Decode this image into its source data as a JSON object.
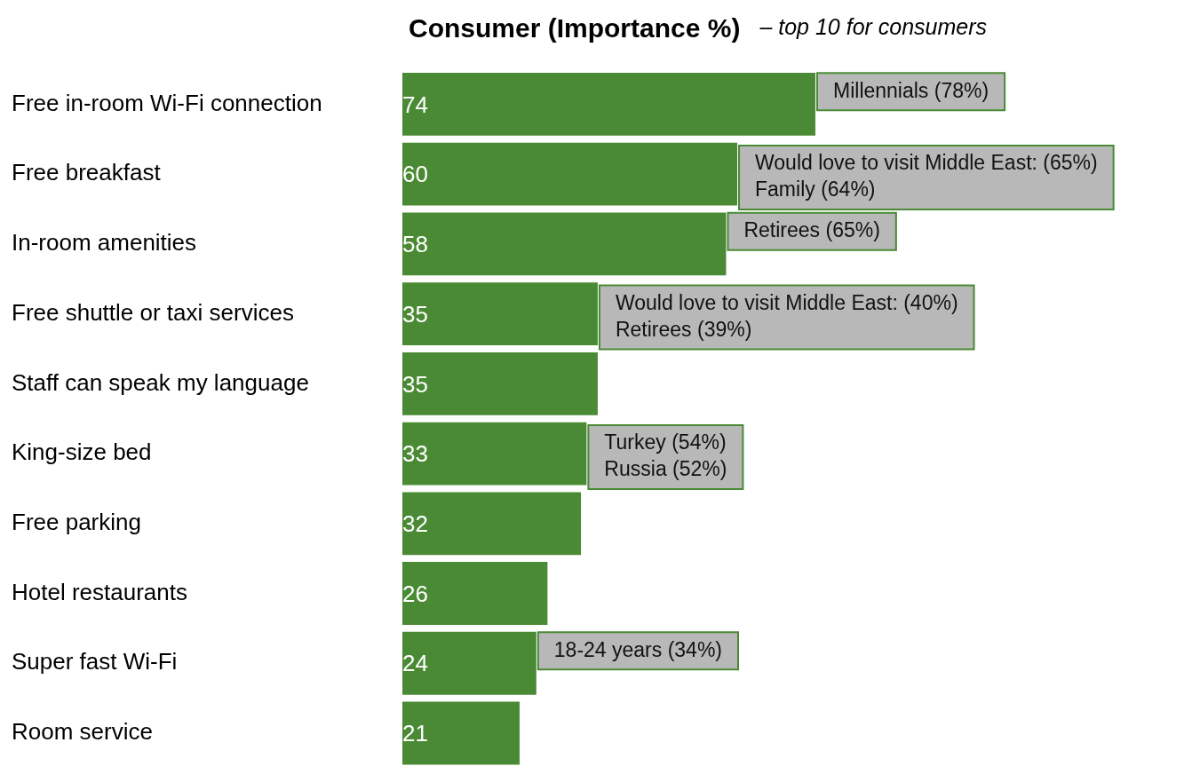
{
  "chart_data": {
    "type": "bar",
    "orientation": "horizontal",
    "title": "Consumer (Importance %)",
    "subtitle": "– top 10 for consumers",
    "categories": [
      "Free in-room Wi-Fi connection",
      "Free breakfast",
      "In-room amenities",
      "Free shuttle or taxi services",
      "Staff can speak my language",
      "King-size bed",
      "Free parking",
      "Hotel restaurants",
      "Super fast Wi-Fi",
      "Room service"
    ],
    "values": [
      74,
      60,
      58,
      35,
      35,
      33,
      32,
      26,
      24,
      21
    ],
    "color": "#4a8a35",
    "data_labels": true,
    "annotations": [
      {
        "text": "Millennials (78%)",
        "x": 74,
        "y": "Free in-room Wi-Fi connection"
      },
      {
        "text": "Would love to visit Middle East: (65%)\nFamily (64%)",
        "x": 60,
        "y": "Free breakfast"
      },
      {
        "text": "Retirees (65%)",
        "x": 58,
        "y": "In-room amenities"
      },
      {
        "text": "Would love to visit Middle East: (40%)\nRetirees (39%)",
        "x": 35,
        "y": "Free shuttle or taxi services"
      },
      {
        "text": "Turkey (54%)\nRussia (52%)",
        "x": 33,
        "y": "King-size bed"
      },
      {
        "text": "18-24 years (34%)",
        "x": 24,
        "y": "Super fast Wi-Fi"
      }
    ]
  }
}
